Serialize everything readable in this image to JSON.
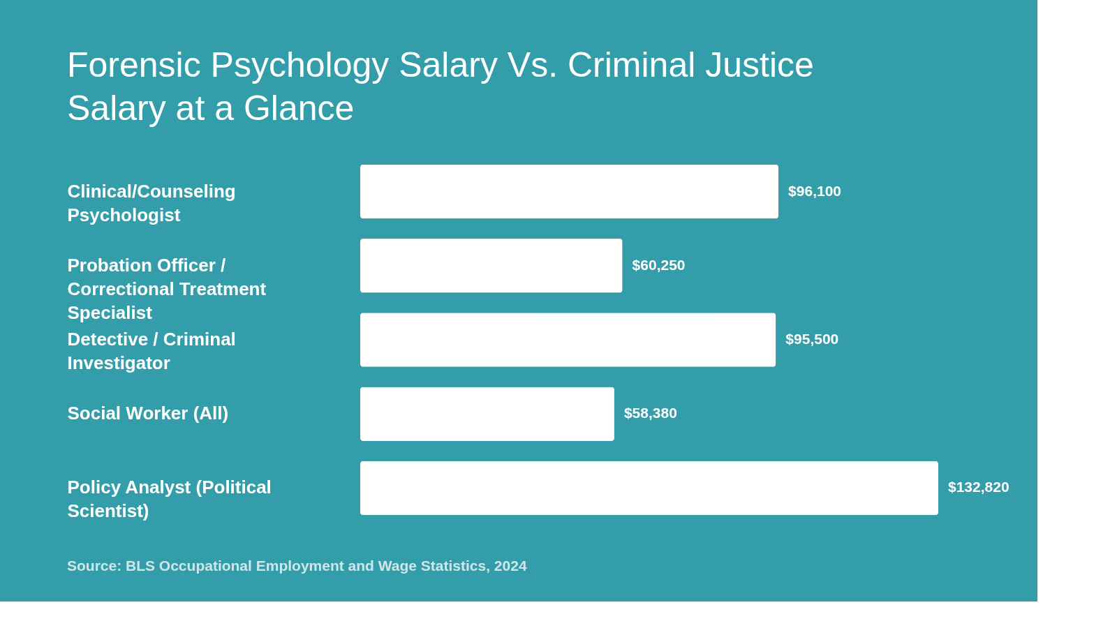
{
  "chart_data": {
    "type": "bar",
    "orientation": "horizontal",
    "title": "Forensic Psychology Salary Vs. Criminal Justice Salary at a Glance",
    "categories": [
      "Clinical/Counseling Psychologist",
      "Probation Officer / Correctional Treatment Specialist",
      "Detective / Criminal Investigator",
      "Social Worker (All)",
      "Policy Analyst (Political Scientist)"
    ],
    "values": [
      96100,
      60250,
      95500,
      58380,
      132820
    ],
    "value_labels": [
      "$96,100",
      "$60,250",
      "$95,500",
      "$58,380",
      "$132,820"
    ],
    "color": "#ffffff",
    "annotations": [
      "Source: BLS Occupational Employment and Wage Statistics, 2024"
    ]
  }
}
